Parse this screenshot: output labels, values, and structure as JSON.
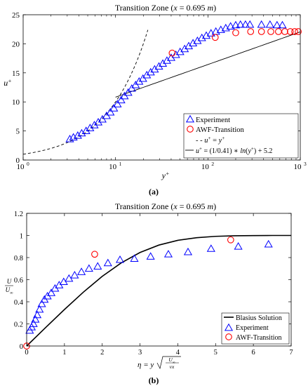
{
  "chart_data": [
    {
      "type": "scatter",
      "title": "Transition Zone (x = 0.695 m)",
      "xlabel": "y+",
      "ylabel": "u+",
      "xscale": "log",
      "xlim": [
        1,
        1000
      ],
      "ylim": [
        0,
        25
      ],
      "xticks": [
        "10^0",
        "10^1",
        "10^2",
        "10^3"
      ],
      "yticks": [
        "0",
        "5",
        "10",
        "15",
        "20",
        "25"
      ],
      "grid": false,
      "legend_position": "bottom-right",
      "panel_label": "(a)",
      "series": [
        {
          "name": "Experiment",
          "marker": "triangle",
          "color": "#0000ff",
          "x": [
            3.2,
            3.5,
            3.9,
            4.3,
            4.8,
            5.3,
            5.9,
            6.5,
            7.2,
            8.0,
            8.8,
            9.6,
            10.5,
            11.5,
            12.5,
            13.7,
            15.0,
            16.5,
            18.0,
            19.8,
            21.8,
            24.0,
            26.5,
            29.5,
            32.5,
            36.0,
            40.0,
            45.0,
            50.0,
            56.0,
            62.0,
            69.0,
            77.0,
            86.0,
            96.0,
            108.0,
            122.0,
            138.0,
            156.0,
            176.0,
            200.0,
            225.0,
            255.0,
            285.0,
            380.0,
            470.0,
            560.0,
            640.0
          ],
          "y": [
            3.6,
            3.9,
            4.2,
            4.6,
            5.0,
            5.5,
            6.0,
            6.5,
            7.0,
            7.6,
            8.2,
            8.9,
            9.6,
            10.3,
            11.0,
            11.6,
            12.3,
            12.9,
            13.5,
            14.0,
            14.6,
            15.1,
            15.6,
            16.1,
            16.6,
            17.1,
            17.6,
            18.1,
            18.6,
            19.1,
            19.6,
            20.1,
            20.5,
            21.0,
            21.4,
            21.8,
            22.1,
            22.4,
            22.7,
            23.0,
            23.2,
            23.3,
            23.3,
            23.3,
            23.3,
            23.3,
            23.2,
            23.2
          ]
        },
        {
          "name": "AWF-Transition",
          "marker": "circle",
          "color": "#ff0000",
          "x": [
            41,
            120,
            200,
            290,
            380,
            480,
            580,
            680,
            780,
            870,
            950
          ],
          "y": [
            18.4,
            21.1,
            21.9,
            22.1,
            22.1,
            22.1,
            22.1,
            22.1,
            22.1,
            22.1,
            22.1
          ]
        },
        {
          "name": "u+ = y+",
          "style": "dashed",
          "color": "#000000",
          "function": "linear"
        },
        {
          "name": "u+ = (1/0.41) * ln(y+) + 5.2",
          "style": "solid",
          "color": "#000000",
          "function": "log-law",
          "x_range": [
            10,
            1000
          ]
        }
      ]
    },
    {
      "type": "scatter",
      "title": "Transition Zone (x = 0.695 m)",
      "xlabel": "η = y √(U∞ / νx)",
      "ylabel": "U / U∞",
      "xlim": [
        0,
        7
      ],
      "ylim": [
        0,
        1.2
      ],
      "xticks": [
        "0",
        "1",
        "2",
        "3",
        "4",
        "5",
        "6",
        "7"
      ],
      "yticks": [
        "0",
        "0.2",
        "0.4",
        "0.6",
        "0.8",
        "1",
        "1.2"
      ],
      "grid": false,
      "legend_position": "bottom-right",
      "panel_label": "(b)",
      "series": [
        {
          "name": "Blasius Solution",
          "style": "solid",
          "color": "#000000",
          "x": [
            0,
            0.5,
            1.0,
            1.5,
            2.0,
            2.5,
            3.0,
            3.5,
            4.0,
            4.5,
            5.0,
            5.5,
            6.0,
            6.5,
            7.0
          ],
          "y": [
            0,
            0.166,
            0.33,
            0.487,
            0.63,
            0.751,
            0.846,
            0.913,
            0.956,
            0.98,
            0.992,
            0.997,
            0.999,
            1.0,
            1.0
          ]
        },
        {
          "name": "Experiment",
          "marker": "triangle",
          "color": "#0000ff",
          "x": [
            0.08,
            0.13,
            0.18,
            0.23,
            0.28,
            0.34,
            0.4,
            0.47,
            0.55,
            0.65,
            0.75,
            0.86,
            0.98,
            1.12,
            1.27,
            1.45,
            1.65,
            1.88,
            2.15,
            2.47,
            2.85,
            3.28,
            3.75,
            4.27,
            4.88,
            5.6,
            6.4
          ],
          "y": [
            0.14,
            0.17,
            0.2,
            0.24,
            0.28,
            0.33,
            0.38,
            0.42,
            0.45,
            0.48,
            0.52,
            0.55,
            0.58,
            0.61,
            0.64,
            0.67,
            0.7,
            0.72,
            0.75,
            0.78,
            0.79,
            0.81,
            0.83,
            0.85,
            0.88,
            0.9,
            0.92
          ]
        },
        {
          "name": "AWF-Transition",
          "marker": "circle",
          "color": "#ff0000",
          "x": [
            0,
            1.8,
            5.4
          ],
          "y": [
            0,
            0.83,
            0.96
          ]
        }
      ]
    }
  ]
}
